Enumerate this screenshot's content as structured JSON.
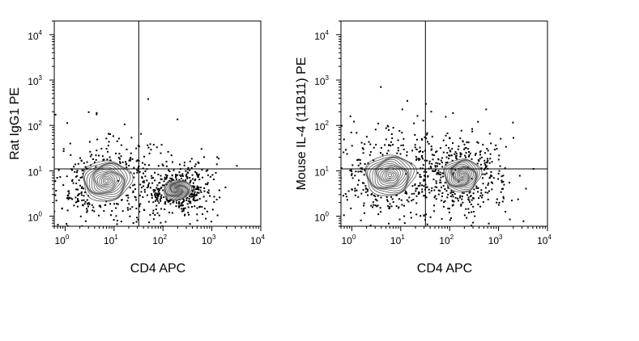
{
  "chart_data": [
    {
      "type": "contour",
      "xlabel": "CD4 APC",
      "ylabel": "Rat IgG1 PE",
      "x_scale": "log",
      "y_scale": "log",
      "xlim": [
        0.6,
        10000
      ],
      "ylim": [
        0.6,
        20000
      ],
      "x_ticks": [
        {
          "base": "10",
          "exp": "0",
          "v": 1
        },
        {
          "base": "10",
          "exp": "1",
          "v": 10
        },
        {
          "base": "10",
          "exp": "2",
          "v": 100
        },
        {
          "base": "10",
          "exp": "3",
          "v": 1000
        },
        {
          "base": "10",
          "exp": "4",
          "v": 10000
        }
      ],
      "y_ticks": [
        {
          "base": "10",
          "exp": "0",
          "v": 1
        },
        {
          "base": "10",
          "exp": "1",
          "v": 10
        },
        {
          "base": "10",
          "exp": "2",
          "v": 100
        },
        {
          "base": "10",
          "exp": "3",
          "v": 1000
        },
        {
          "base": "10",
          "exp": "4",
          "v": 10000
        }
      ],
      "quadrant_gate": {
        "x": 32,
        "y": 11
      },
      "populations": [
        {
          "x": 7,
          "y": 6,
          "sx": 0.37,
          "sy": 0.33,
          "rot": 0.15
        },
        {
          "x": 200,
          "y": 3.8,
          "sx": 0.22,
          "sy": 0.16,
          "rot": 0.1
        }
      ]
    },
    {
      "type": "contour",
      "xlabel": "CD4 APC",
      "ylabel": "Mouse IL-4 (11B11) PE",
      "x_scale": "log",
      "y_scale": "log",
      "xlim": [
        0.6,
        10000
      ],
      "ylim": [
        0.6,
        20000
      ],
      "x_ticks": [
        {
          "base": "10",
          "exp": "0",
          "v": 1
        },
        {
          "base": "10",
          "exp": "1",
          "v": 10
        },
        {
          "base": "10",
          "exp": "2",
          "v": 100
        },
        {
          "base": "10",
          "exp": "3",
          "v": 1000
        },
        {
          "base": "10",
          "exp": "4",
          "v": 10000
        }
      ],
      "y_ticks": [
        {
          "base": "10",
          "exp": "0",
          "v": 1
        },
        {
          "base": "10",
          "exp": "1",
          "v": 10
        },
        {
          "base": "10",
          "exp": "2",
          "v": 100
        },
        {
          "base": "10",
          "exp": "3",
          "v": 1000
        },
        {
          "base": "10",
          "exp": "4",
          "v": 10000
        }
      ],
      "quadrant_gate": {
        "x": 32,
        "y": 11
      },
      "populations": [
        {
          "x": 6,
          "y": 8,
          "sx": 0.38,
          "sy": 0.33,
          "rot": 0.2
        },
        {
          "x": 180,
          "y": 8,
          "sx": 0.28,
          "sy": 0.27,
          "rot": 0.35
        }
      ]
    }
  ]
}
